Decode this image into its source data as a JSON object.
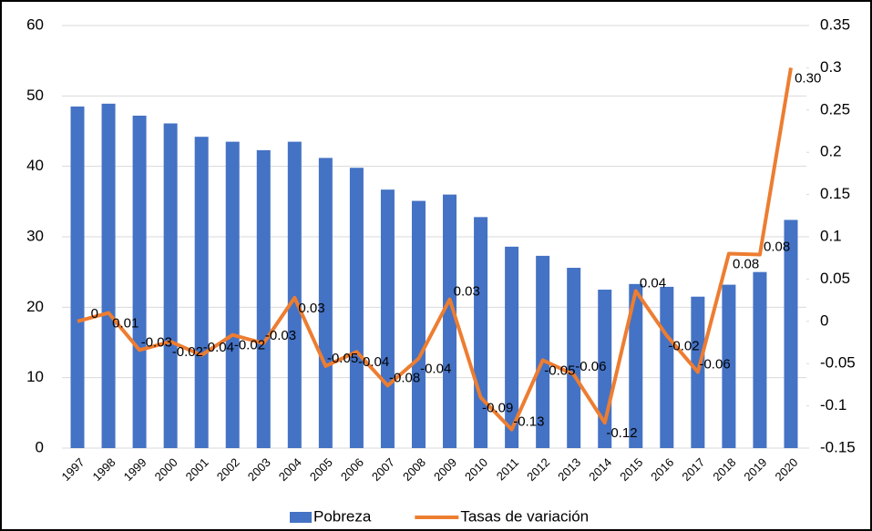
{
  "chart_data": {
    "type": "bar-line",
    "categories": [
      "1997",
      "1998",
      "1999",
      "2000",
      "2001",
      "2002",
      "2003",
      "2004",
      "2005",
      "2006",
      "2007",
      "2008",
      "2009",
      "2010",
      "2011",
      "2012",
      "2013",
      "2014",
      "2015",
      "2016",
      "2017",
      "2018",
      "2019",
      "2020"
    ],
    "series": [
      {
        "name": "Pobreza",
        "type": "bar",
        "color": "#4472c4",
        "values": [
          48.5,
          48.9,
          47.2,
          46.1,
          44.2,
          43.5,
          42.3,
          43.5,
          41.2,
          39.8,
          36.7,
          35.1,
          36.0,
          32.8,
          28.6,
          27.3,
          25.6,
          22.5,
          23.3,
          22.9,
          21.5,
          23.2,
          25.0,
          32.4
        ]
      },
      {
        "name": "Tasas de variación",
        "type": "line",
        "axis": "y2",
        "color": "#ed7d31",
        "values": [
          0,
          0.01,
          -0.034,
          -0.024,
          -0.04,
          -0.016,
          -0.026,
          0.028,
          -0.053,
          -0.036,
          -0.076,
          -0.044,
          0.026,
          -0.09,
          -0.128,
          -0.046,
          -0.063,
          -0.12,
          0.036,
          -0.017,
          -0.06,
          0.08,
          0.079,
          0.3
        ],
        "value_labels": [
          "0",
          "0.01",
          "-0.03",
          "-0.02",
          "-0.04",
          "-0.02",
          "-0.03",
          "0.03",
          "-0.05",
          "-0.04",
          "-0.08",
          "-0.04",
          "0.03",
          "-0.09",
          "-0.13",
          "-0.05",
          "-0.06",
          "-0.12",
          "0.04",
          "-0.02",
          "-0.06",
          "0.08",
          "0.08",
          "0.30"
        ]
      }
    ],
    "ylim": [
      0,
      60
    ],
    "yticks": [
      0,
      10,
      20,
      30,
      40,
      50,
      60
    ],
    "y2lim": [
      -0.15,
      0.35
    ],
    "y2ticks": [
      -0.15,
      -0.1,
      -0.05,
      0,
      0.05,
      0.1,
      0.15,
      0.2,
      0.25,
      0.3,
      0.35
    ],
    "grid": true,
    "legend": "bottom"
  }
}
